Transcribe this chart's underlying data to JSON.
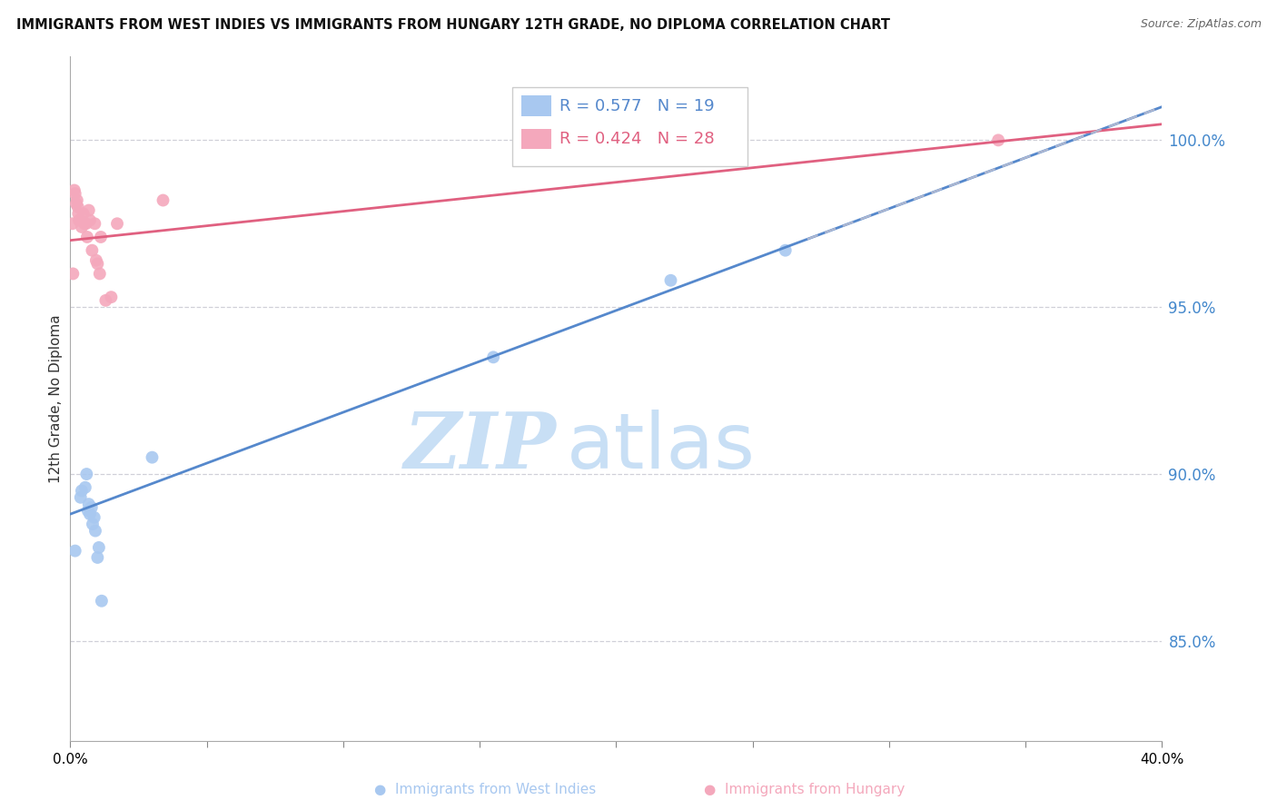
{
  "title": "IMMIGRANTS FROM WEST INDIES VS IMMIGRANTS FROM HUNGARY 12TH GRADE, NO DIPLOMA CORRELATION CHART",
  "source": "Source: ZipAtlas.com",
  "ylabel": "12th Grade, No Diploma",
  "legend_blue_r": "R = 0.577",
  "legend_blue_n": "N = 19",
  "legend_pink_r": "R = 0.424",
  "legend_pink_n": "N = 28",
  "blue_scatter_color": "#a8c8f0",
  "pink_scatter_color": "#f4a8bc",
  "blue_line_color": "#5588cc",
  "pink_line_color": "#e06080",
  "dashed_line_color": "#b0b8d0",
  "right_ytick_color": "#4488cc",
  "watermark_zip_color": "#c8dff5",
  "watermark_atlas_color": "#c8dff5",
  "background_color": "#ffffff",
  "west_indies_x": [
    0.0018,
    0.0038,
    0.0042,
    0.0055,
    0.006,
    0.0065,
    0.0068,
    0.0072,
    0.0078,
    0.0082,
    0.0088,
    0.0092,
    0.01,
    0.0105,
    0.0115,
    0.03,
    0.155,
    0.22,
    0.262
  ],
  "west_indies_y": [
    0.877,
    0.893,
    0.895,
    0.896,
    0.9,
    0.889,
    0.891,
    0.888,
    0.89,
    0.885,
    0.887,
    0.883,
    0.875,
    0.878,
    0.862,
    0.905,
    0.935,
    0.958,
    0.967
  ],
  "hungary_x": [
    0.0008,
    0.001,
    0.0015,
    0.0018,
    0.0022,
    0.0025,
    0.0028,
    0.003,
    0.0032,
    0.0038,
    0.0042,
    0.0048,
    0.0052,
    0.0058,
    0.0062,
    0.0068,
    0.0072,
    0.008,
    0.009,
    0.0095,
    0.01,
    0.0108,
    0.0112,
    0.013,
    0.015,
    0.0172,
    0.034,
    0.34
  ],
  "hungary_y": [
    0.975,
    0.96,
    0.985,
    0.984,
    0.981,
    0.982,
    0.98,
    0.978,
    0.976,
    0.976,
    0.974,
    0.978,
    0.975,
    0.975,
    0.971,
    0.979,
    0.976,
    0.967,
    0.975,
    0.964,
    0.963,
    0.96,
    0.971,
    0.952,
    0.953,
    0.975,
    0.982,
    1.0
  ],
  "xmin": 0.0,
  "xmax": 0.4,
  "ymin": 0.82,
  "ymax": 1.025,
  "right_yticks": [
    0.85,
    0.9,
    0.95,
    1.0
  ],
  "right_ytick_labels": [
    "85.0%",
    "90.0%",
    "95.0%",
    "100.0%"
  ],
  "xtick_positions": [
    0.0,
    0.05,
    0.1,
    0.15,
    0.2,
    0.25,
    0.3,
    0.35,
    0.4
  ],
  "blue_line_intercept": 0.888,
  "blue_line_slope": 0.305,
  "pink_line_intercept": 0.97,
  "pink_line_slope": 0.087
}
